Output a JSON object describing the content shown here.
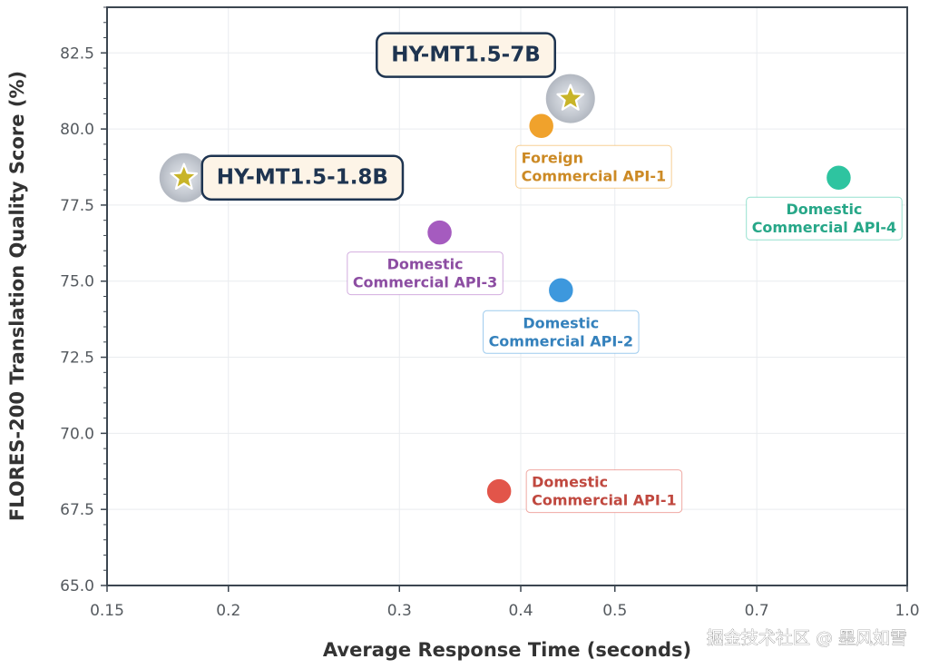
{
  "chart_data": {
    "type": "scatter",
    "x_scale": "log",
    "xlabel": "Average Response Time (seconds)",
    "ylabel": "FLORES-200 Translation Quality Score (%)",
    "xlim": [
      0.15,
      1.0
    ],
    "ylim": [
      65.0,
      84.0
    ],
    "xticks": [
      0.15,
      0.2,
      0.3,
      0.4,
      0.5,
      0.7,
      1.0
    ],
    "xtick_labels": [
      "0.15",
      "0.2",
      "0.3",
      "0.4",
      "0.5",
      "0.7",
      "1.0"
    ],
    "yticks": [
      65.0,
      67.5,
      70.0,
      72.5,
      75.0,
      77.5,
      80.0,
      82.5
    ],
    "ytick_labels": [
      "65.0",
      "67.5",
      "70.0",
      "72.5",
      "75.0",
      "77.5",
      "80.0",
      "82.5"
    ],
    "grid": true,
    "points": [
      {
        "id": "hy-mt-7b",
        "label_lines": [
          "HY-MT1.5-7B"
        ],
        "x": 0.45,
        "y": 81.0,
        "marker": "star",
        "color": "#c8b428",
        "label_pos": "upper-left",
        "highlight": true
      },
      {
        "id": "hy-mt-1-8b",
        "label_lines": [
          "HY-MT1.5-1.8B"
        ],
        "x": 0.18,
        "y": 78.4,
        "marker": "star",
        "color": "#c8b428",
        "label_pos": "right",
        "highlight": true
      },
      {
        "id": "foreign-api-1",
        "label_lines": [
          "Foreign",
          "Commercial API-1"
        ],
        "x": 0.42,
        "y": 80.1,
        "marker": "circle",
        "color": "#f0a22c",
        "label_pos": "below-right"
      },
      {
        "id": "domestic-api-4",
        "label_lines": [
          "Domestic",
          "Commercial API-4"
        ],
        "x": 0.85,
        "y": 78.4,
        "marker": "circle",
        "color": "#2ec4a0",
        "label_pos": "below-left"
      },
      {
        "id": "domestic-api-3",
        "label_lines": [
          "Domestic",
          "Commercial API-3"
        ],
        "x": 0.33,
        "y": 76.6,
        "marker": "circle",
        "color": "#a55bbf",
        "label_pos": "below-left"
      },
      {
        "id": "domestic-api-2",
        "label_lines": [
          "Domestic",
          "Commercial API-2"
        ],
        "x": 0.44,
        "y": 74.7,
        "marker": "circle",
        "color": "#3d98dd",
        "label_pos": "below"
      },
      {
        "id": "domestic-api-1",
        "label_lines": [
          "Domestic",
          "Commercial API-1"
        ],
        "x": 0.38,
        "y": 68.1,
        "marker": "circle",
        "color": "#e2554a",
        "label_pos": "right"
      }
    ]
  },
  "watermark": "掘金技术社区 @ 墨风如雪"
}
